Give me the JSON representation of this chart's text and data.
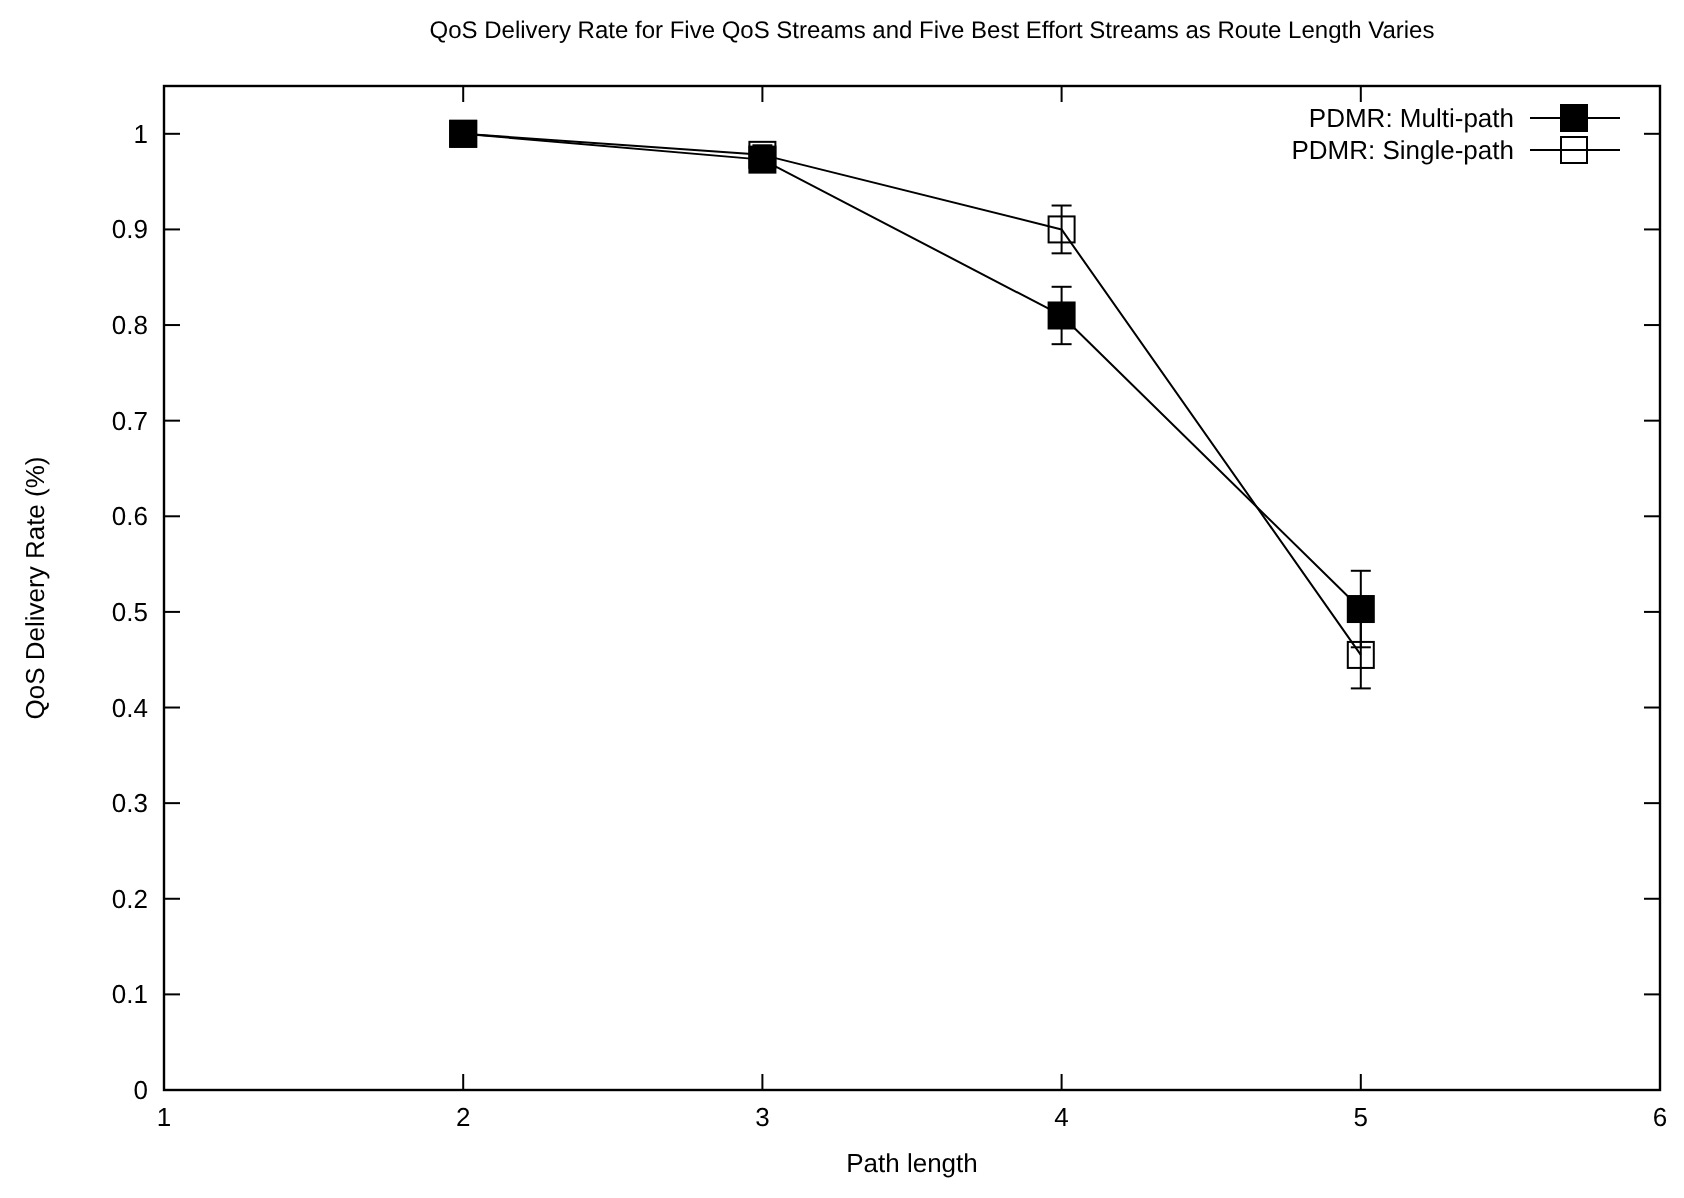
{
  "chart_data": {
    "type": "line",
    "title": "QoS Delivery Rate for Five QoS Streams and Five Best Effort Streams as Route Length Varies",
    "xlabel": "Path length",
    "ylabel": "QoS Delivery Rate (%)",
    "x": [
      2,
      3,
      4,
      5
    ],
    "series": [
      {
        "name": "PDMR: Multi-path",
        "color": "#000000",
        "marker": "square",
        "values": [
          1.0,
          0.973,
          0.81,
          0.503
        ],
        "errors": [
          null,
          0.01,
          0.03,
          0.04
        ]
      },
      {
        "name": "PDMR: Single-path",
        "color": "#000000",
        "marker": "square_open",
        "values": [
          1.0,
          0.978,
          0.9,
          0.455
        ],
        "errors": [
          null,
          0.01,
          0.025,
          0.035
        ]
      }
    ],
    "xlim": [
      1,
      6
    ],
    "xticks": [
      1,
      2,
      3,
      4,
      5,
      6
    ],
    "ylim": [
      0,
      1.05
    ],
    "yticks": [
      0,
      0.1,
      0.2,
      0.3,
      0.4,
      0.5,
      0.6,
      0.7,
      0.8,
      0.9,
      1
    ],
    "grid": false,
    "legend": "top right",
    "line_style": "solid"
  }
}
